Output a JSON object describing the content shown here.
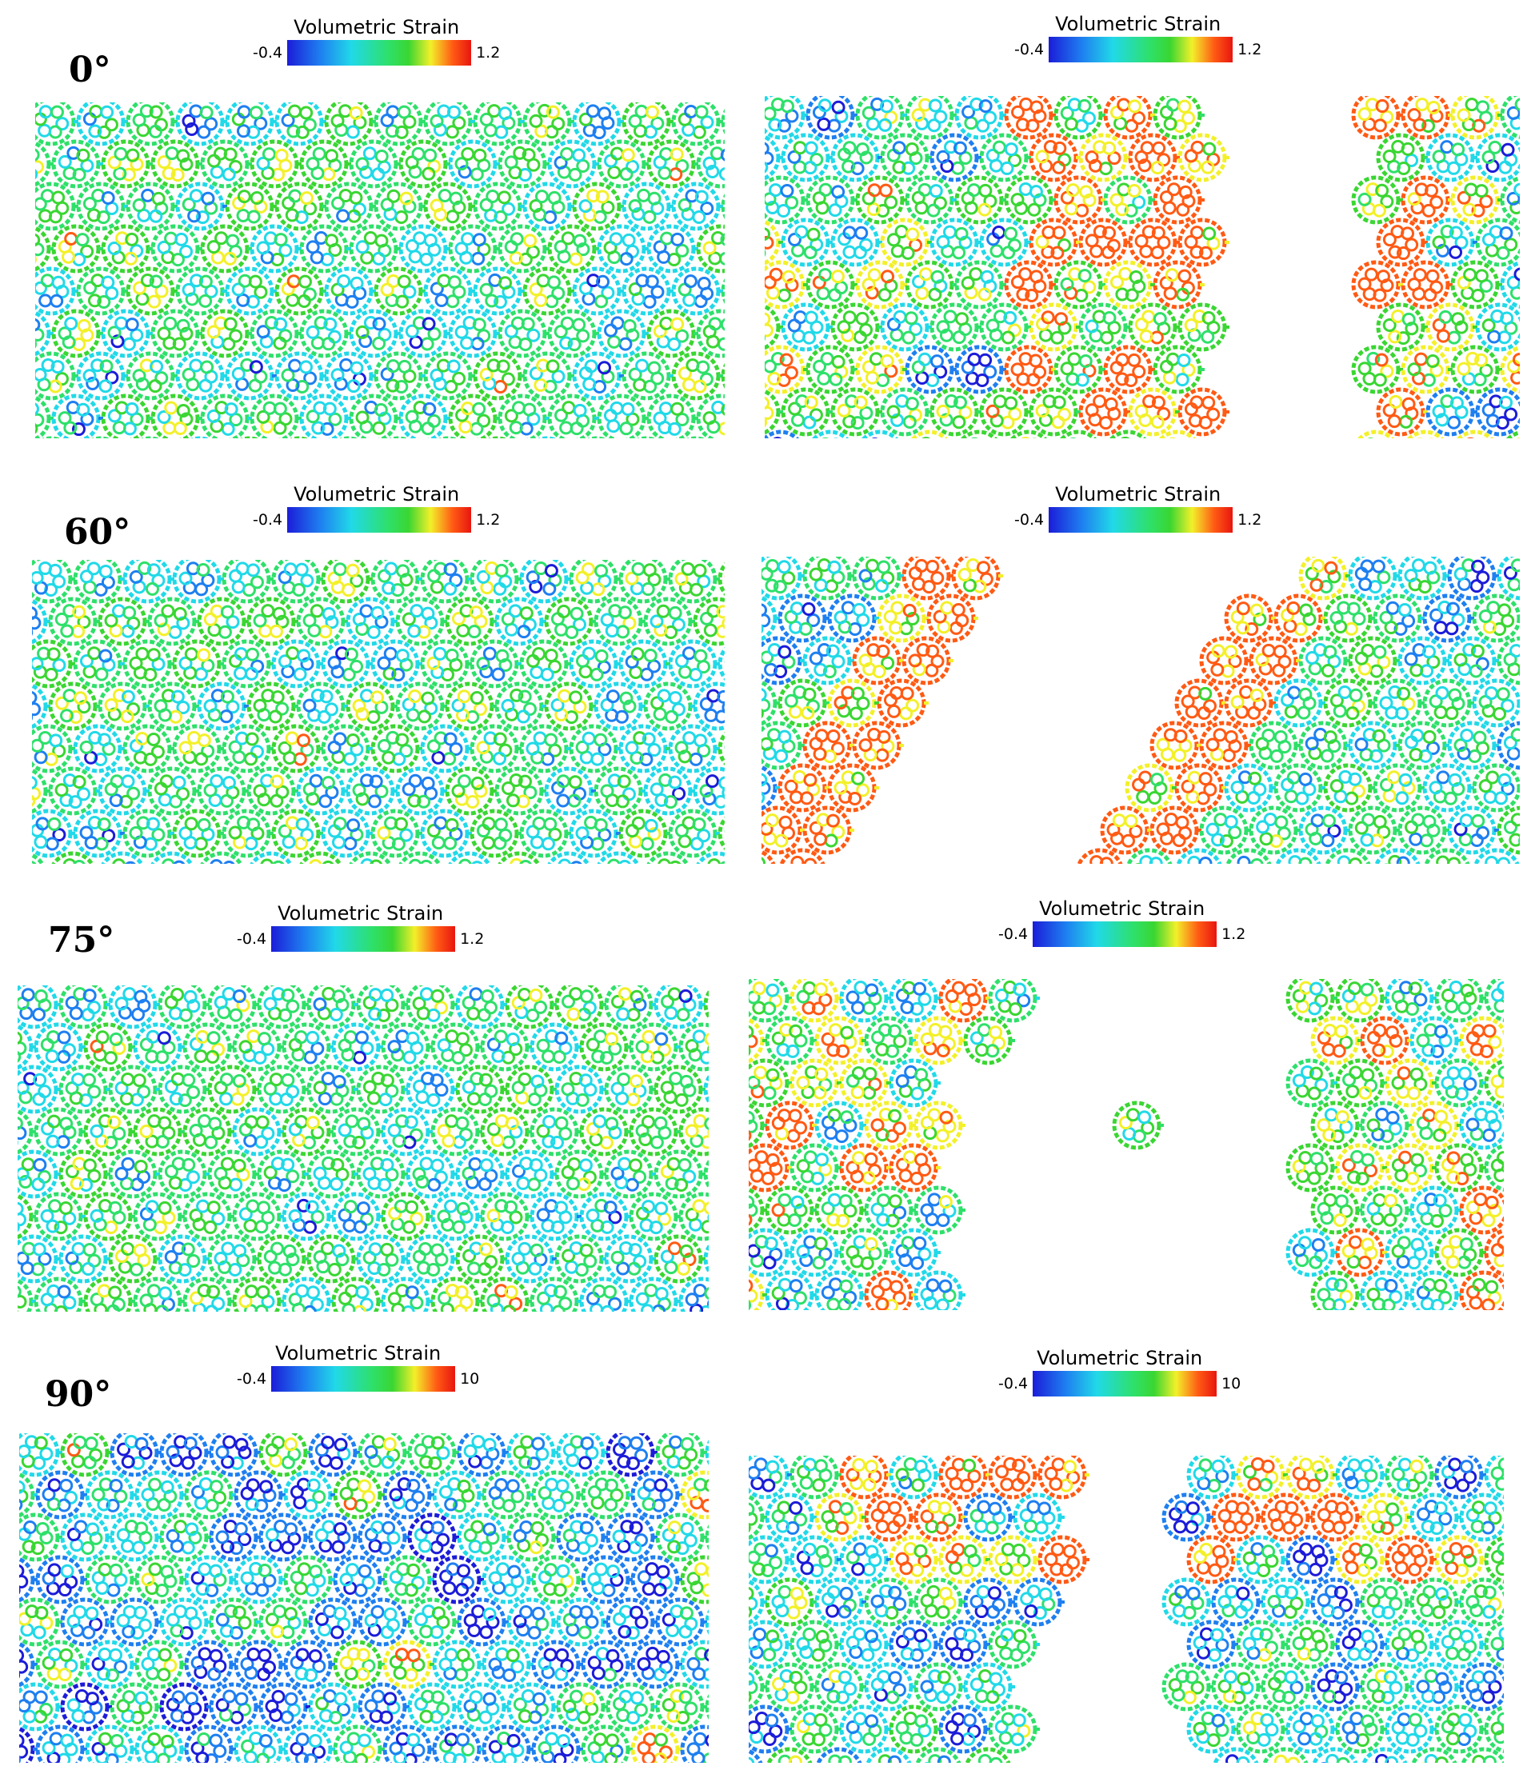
{
  "figure": {
    "rows": [
      {
        "angle": "0°",
        "left_legend": {
          "title": "Volumetric Strain",
          "min": "-0.4",
          "max": "1.2"
        },
        "right_legend": {
          "title": "Volumetric Strain",
          "min": "-0.4",
          "max": "1.2"
        }
      },
      {
        "angle": "60°",
        "left_legend": {
          "title": "Volumetric Strain",
          "min": "-0.4",
          "max": "1.2"
        },
        "right_legend": {
          "title": "Volumetric Strain",
          "min": "-0.4",
          "max": "1.2"
        }
      },
      {
        "angle": "75°",
        "left_legend": {
          "title": "Volumetric Strain",
          "min": "-0.4",
          "max": "1.2"
        },
        "right_legend": {
          "title": "Volumetric Strain",
          "min": "-0.4",
          "max": "1.2"
        }
      },
      {
        "angle": "90°",
        "left_legend": {
          "title": "Volumetric Strain",
          "min": "-0.4",
          "max": "10"
        },
        "right_legend": {
          "title": "Volumetric Strain",
          "min": "-0.4",
          "max": "10"
        }
      }
    ],
    "colormap": [
      "#1c1cd8",
      "#1e7ff0",
      "#21d9e8",
      "#2ee06a",
      "#3ad632",
      "#f3f02a",
      "#ff5a14",
      "#e8160f"
    ]
  }
}
